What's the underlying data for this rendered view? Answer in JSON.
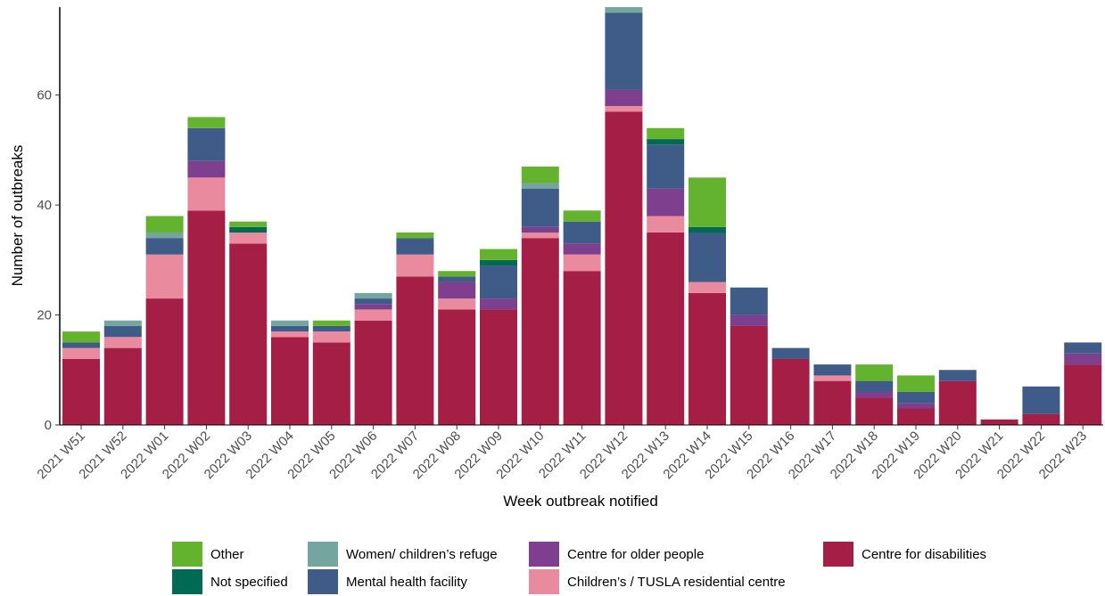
{
  "chart_data": {
    "type": "bar",
    "stacked": true,
    "xlabel": "Week outbreak notified",
    "ylabel": "Number of outbreaks",
    "ylim": [
      0,
      76
    ],
    "yticks": [
      0,
      20,
      40,
      60
    ],
    "grid": false,
    "legend_position": "bottom",
    "categories": [
      "2021 W51",
      "2021 W52",
      "2022 W01",
      "2022 W02",
      "2022 W03",
      "2022 W04",
      "2022 W05",
      "2022 W06",
      "2022 W07",
      "2022 W08",
      "2022 W09",
      "2022 W10",
      "2022 W11",
      "2022 W12",
      "2022 W13",
      "2022 W14",
      "2022 W15",
      "2022 W16",
      "2022 W17",
      "2022 W18",
      "2022 W19",
      "2022 W20",
      "2022 W21",
      "2022 W22",
      "2022 W23"
    ],
    "series": [
      {
        "name": "Centre for disabilities",
        "color": "#A41E45",
        "values": [
          12,
          14,
          23,
          39,
          33,
          16,
          15,
          19,
          27,
          21,
          21,
          34,
          28,
          57,
          35,
          24,
          18,
          12,
          8,
          5,
          3,
          8,
          1,
          2,
          11
        ]
      },
      {
        "name": "Children’s / TUSLA residential centre",
        "color": "#EA8A9F",
        "values": [
          2,
          2,
          8,
          6,
          2,
          1,
          2,
          2,
          4,
          2,
          0,
          1,
          3,
          1,
          3,
          2,
          0,
          0,
          1,
          0,
          0,
          0,
          0,
          0,
          0
        ]
      },
      {
        "name": "Centre for older people",
        "color": "#7E3F8F",
        "values": [
          0,
          0,
          0,
          3,
          0,
          0,
          0,
          1,
          0,
          3,
          2,
          1,
          2,
          3,
          5,
          0,
          2,
          0,
          0,
          1,
          1,
          0,
          0,
          0,
          2
        ]
      },
      {
        "name": "Mental health facility",
        "color": "#3E5C87",
        "values": [
          1,
          2,
          3,
          6,
          0,
          1,
          1,
          1,
          3,
          1,
          6,
          7,
          4,
          14,
          8,
          9,
          5,
          2,
          2,
          2,
          2,
          2,
          0,
          5,
          2
        ]
      },
      {
        "name": "Not specified",
        "color": "#006A54",
        "values": [
          0,
          0,
          0,
          0,
          1,
          0,
          0,
          0,
          0,
          0,
          1,
          0,
          0,
          0,
          1,
          1,
          0,
          0,
          0,
          0,
          0,
          0,
          0,
          0,
          0
        ]
      },
      {
        "name": "Women/ children’s refuge",
        "color": "#74A59E",
        "values": [
          0,
          1,
          1,
          0,
          0,
          1,
          0,
          1,
          0,
          0,
          0,
          1,
          0,
          1,
          0,
          0,
          0,
          0,
          0,
          0,
          0,
          0,
          0,
          0,
          0
        ]
      },
      {
        "name": "Other",
        "color": "#64B32E",
        "values": [
          2,
          0,
          3,
          2,
          1,
          0,
          1,
          0,
          1,
          1,
          2,
          3,
          2,
          0,
          2,
          9,
          0,
          0,
          0,
          3,
          3,
          0,
          0,
          0,
          0
        ]
      }
    ],
    "legend": [
      {
        "name": "Other",
        "color": "#64B32E"
      },
      {
        "name": "Not specified",
        "color": "#006A54"
      },
      {
        "name": "Women/ children’s refuge",
        "color": "#74A59E"
      },
      {
        "name": "Mental health facility",
        "color": "#3E5C87"
      },
      {
        "name": "Centre for older people",
        "color": "#7E3F8F"
      },
      {
        "name": "Children’s / TUSLA residential centre",
        "color": "#EA8A9F"
      },
      {
        "name": "Centre for disabilities",
        "color": "#A41E45"
      }
    ]
  }
}
